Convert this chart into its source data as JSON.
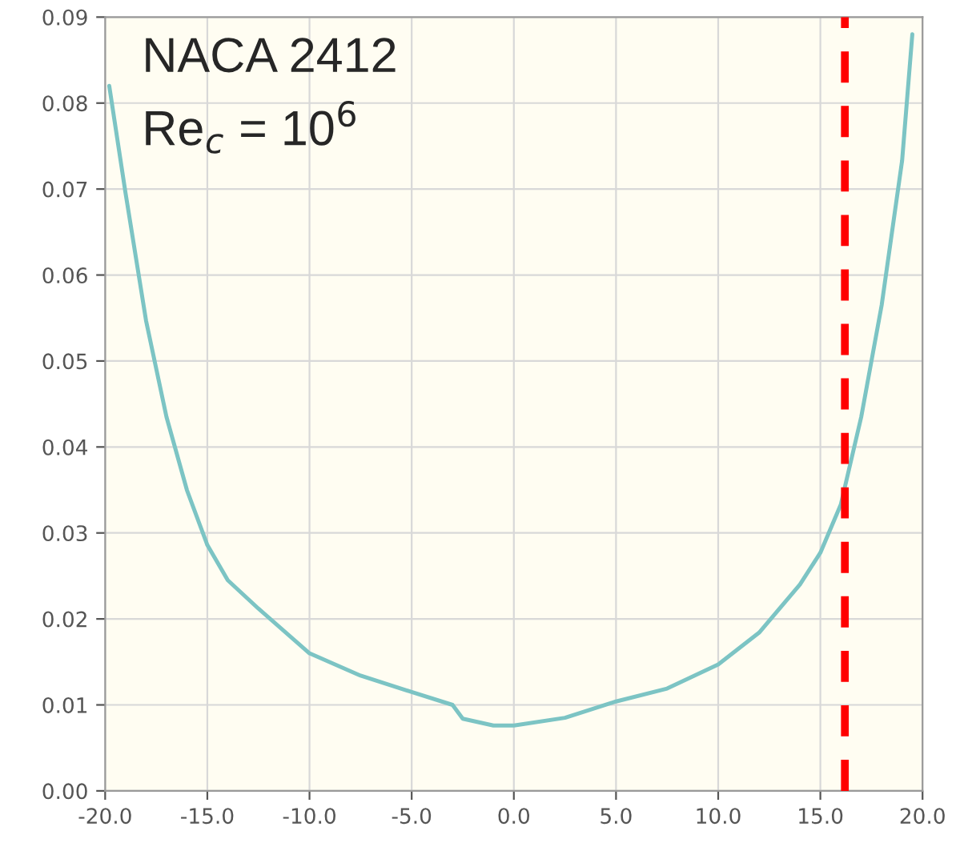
{
  "chart_data": {
    "type": "line",
    "annotations": [
      "NACA 2412",
      "Re$_{c}$ = 10$^{6}$"
    ],
    "series": [
      {
        "color": "#7cc4c4",
        "x": [
          -19.8,
          -19,
          -18,
          -17,
          -16,
          -15,
          -14,
          -12.5,
          -10,
          -7.5,
          -5,
          -3,
          -2.5,
          -1,
          0,
          2.5,
          5,
          7.5,
          10,
          12,
          14,
          15,
          16,
          17,
          18,
          19,
          19.5
        ],
        "values": [
          0.082,
          0.0695,
          0.0547,
          0.0435,
          0.035,
          0.0286,
          0.0245,
          0.0212,
          0.016,
          0.0134,
          0.0115,
          0.01,
          0.0084,
          0.0076,
          0.0076,
          0.0085,
          0.0104,
          0.0119,
          0.0147,
          0.0184,
          0.024,
          0.0277,
          0.0333,
          0.0435,
          0.0565,
          0.0733,
          0.088
        ]
      }
    ],
    "xlim": [
      -20,
      20
    ],
    "xticks": [
      {
        "value": -20,
        "label": "-20.0"
      },
      {
        "value": -15,
        "label": "-15.0"
      },
      {
        "value": -10,
        "label": "-10.0"
      },
      {
        "value": -5,
        "label": "-5.0"
      },
      {
        "value": 0,
        "label": "0.0"
      },
      {
        "value": 5,
        "label": "5.0"
      },
      {
        "value": 10,
        "label": "10.0"
      },
      {
        "value": 15,
        "label": "15.0"
      },
      {
        "value": 20,
        "label": "20.0"
      }
    ],
    "ylim": [
      0,
      0.09
    ],
    "yticks": [
      {
        "value": 0,
        "label": "0.00"
      },
      {
        "value": 0.01,
        "label": "0.01"
      },
      {
        "value": 0.02,
        "label": "0.02"
      },
      {
        "value": 0.03,
        "label": "0.03"
      },
      {
        "value": 0.04,
        "label": "0.04"
      },
      {
        "value": 0.05,
        "label": "0.05"
      },
      {
        "value": 0.06,
        "label": "0.06"
      },
      {
        "value": 0.07,
        "label": "0.07"
      },
      {
        "value": 0.08,
        "label": "0.08"
      },
      {
        "value": 0.09,
        "label": "0.09"
      }
    ],
    "grid": true,
    "ref_lines": [
      {
        "axis": "x",
        "value": 16.2,
        "color": "#ff0000",
        "line_style": "dashed"
      }
    ]
  }
}
